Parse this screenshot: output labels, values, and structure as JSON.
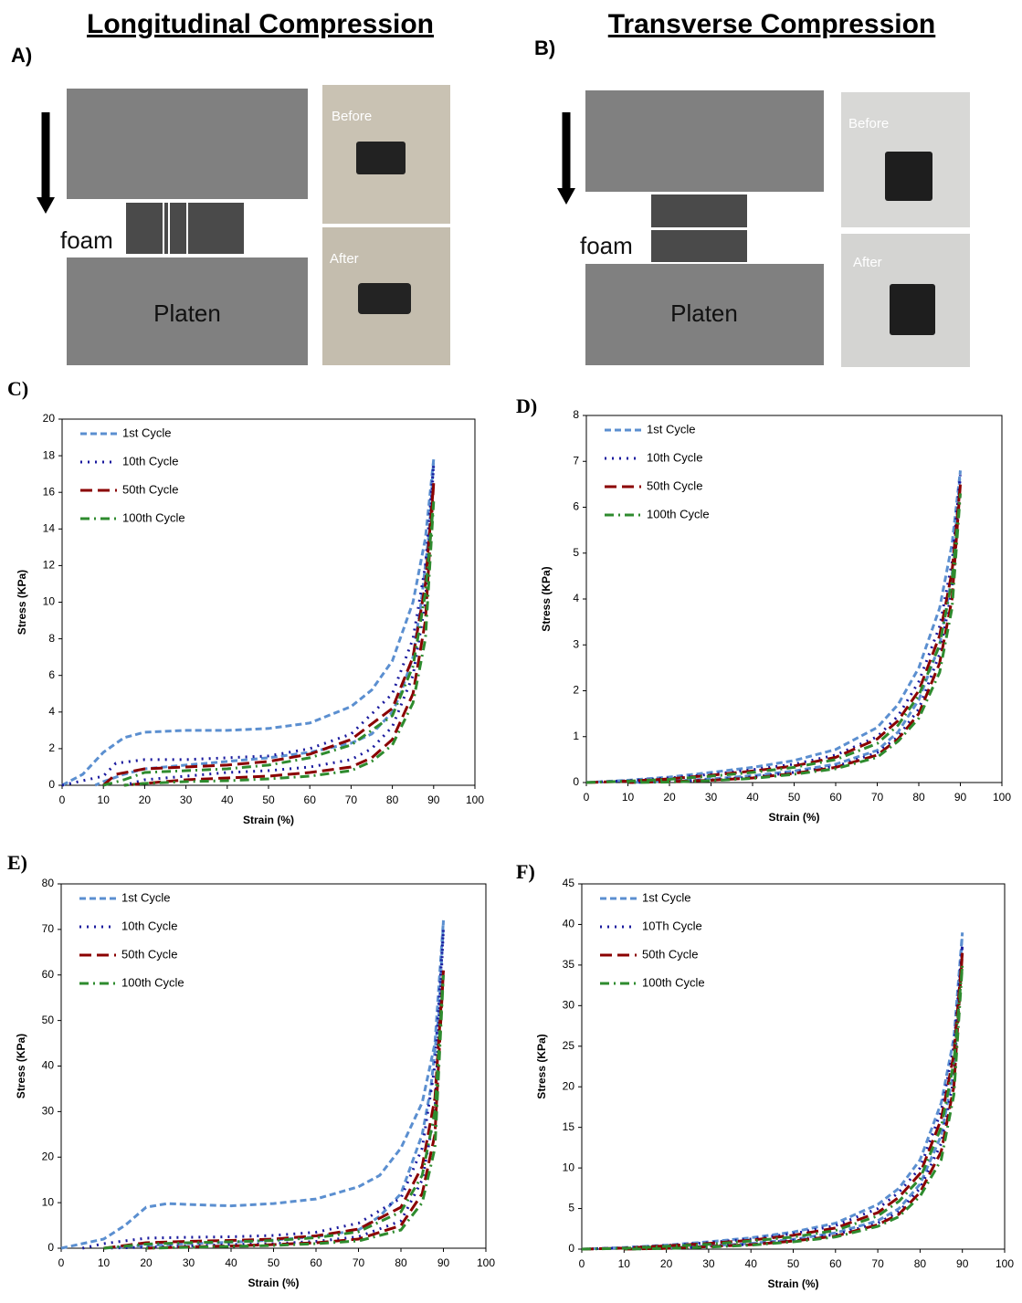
{
  "figure": {
    "panel_a": {
      "title": "Longitudinal Compression",
      "label": "A)",
      "foam": "foam",
      "platen": "Platen",
      "before": "Before",
      "after": "After"
    },
    "panel_b": {
      "title": "Transverse Compression",
      "label": "B)",
      "foam": "foam",
      "platen": "Platen",
      "before": "Before",
      "after": "After"
    }
  },
  "chart_data": [
    {
      "type": "line",
      "panel": "C)",
      "x_label": "Strain (%)",
      "y_label": "Stress (KPa)",
      "legend": "upper left",
      "xlim": [
        0,
        100
      ],
      "xticks": [
        0,
        10,
        20,
        30,
        40,
        50,
        60,
        70,
        80,
        90,
        100
      ],
      "ylim": [
        0,
        20
      ],
      "yticks": [
        0,
        2,
        4,
        6,
        8,
        10,
        12,
        14,
        16,
        18,
        20
      ],
      "series": [
        {
          "name": "1st Cycle",
          "color": "#5b8fd0",
          "dash": "dashed",
          "x": [
            0,
            5,
            10,
            15,
            20,
            30,
            40,
            50,
            60,
            70,
            75,
            80,
            85,
            88,
            90,
            89,
            87,
            85,
            82,
            80,
            75,
            70,
            60,
            50,
            40,
            30,
            20,
            15,
            10,
            8
          ],
          "values": [
            0,
            0.6,
            1.8,
            2.6,
            2.9,
            3.0,
            3.0,
            3.1,
            3.4,
            4.3,
            5.2,
            6.8,
            10,
            13.5,
            17.8,
            14,
            10,
            7,
            5,
            4,
            2.8,
            2.3,
            1.8,
            1.5,
            1.3,
            1.1,
            0.9,
            0.6,
            0.2,
            0
          ]
        },
        {
          "name": "10th Cycle",
          "color": "#1a1a9e",
          "dash": "dotted",
          "x": [
            0,
            10,
            13,
            20,
            30,
            40,
            50,
            60,
            70,
            80,
            85,
            88,
            90,
            88,
            85,
            80,
            75,
            70,
            60,
            50,
            40,
            30,
            20,
            15
          ],
          "values": [
            0,
            0.5,
            1.2,
            1.4,
            1.4,
            1.5,
            1.6,
            2.0,
            2.8,
            5,
            8,
            12,
            17.5,
            10,
            6,
            3.2,
            2.0,
            1.4,
            1.0,
            0.8,
            0.7,
            0.5,
            0.3,
            0
          ]
        },
        {
          "name": "50th Cycle",
          "color": "#8b0000",
          "dash": "longdash",
          "x": [
            10,
            13,
            20,
            30,
            40,
            50,
            60,
            70,
            80,
            85,
            88,
            90,
            88,
            85,
            80,
            75,
            70,
            60,
            50,
            40,
            30,
            20,
            15
          ],
          "values": [
            0,
            0.6,
            0.9,
            1.0,
            1.1,
            1.3,
            1.7,
            2.5,
            4.2,
            7,
            11,
            16.5,
            9,
            5,
            2.5,
            1.5,
            1.0,
            0.7,
            0.5,
            0.4,
            0.3,
            0.1,
            0
          ]
        },
        {
          "name": "100th Cycle",
          "color": "#2e8b2e",
          "dash": "dashdot",
          "x": [
            10,
            15,
            20,
            30,
            40,
            50,
            60,
            70,
            80,
            85,
            88,
            90,
            88,
            85,
            80,
            75,
            70,
            60,
            50,
            40,
            30,
            20,
            15
          ],
          "values": [
            0,
            0.3,
            0.7,
            0.8,
            0.9,
            1.1,
            1.5,
            2.2,
            3.8,
            6.5,
            10.5,
            15.5,
            8,
            4.5,
            2.2,
            1.3,
            0.8,
            0.5,
            0.35,
            0.25,
            0.2,
            0.1,
            0
          ]
        }
      ]
    },
    {
      "type": "line",
      "panel": "D)",
      "x_label": "Strain (%)",
      "y_label": "Stress (KPa)",
      "legend": "upper left",
      "xlim": [
        0,
        100
      ],
      "xticks": [
        0,
        10,
        20,
        30,
        40,
        50,
        60,
        70,
        80,
        90,
        100
      ],
      "ylim": [
        0,
        8
      ],
      "yticks": [
        0,
        1,
        2,
        3,
        4,
        5,
        6,
        7,
        8
      ],
      "series": [
        {
          "name": "1st Cycle",
          "color": "#5b8fd0",
          "dash": "dashed",
          "x": [
            0,
            10,
            20,
            30,
            40,
            50,
            60,
            70,
            75,
            80,
            85,
            88,
            90,
            88,
            85,
            80,
            75,
            70,
            60,
            50,
            40,
            30,
            20,
            10
          ],
          "values": [
            0,
            0.05,
            0.12,
            0.22,
            0.33,
            0.48,
            0.72,
            1.2,
            1.7,
            2.5,
            3.8,
            5.2,
            6.8,
            4.5,
            3,
            1.8,
            1.1,
            0.7,
            0.4,
            0.25,
            0.15,
            0.08,
            0.03,
            0
          ]
        },
        {
          "name": "10th Cycle",
          "color": "#1a1a9e",
          "dash": "dotted",
          "x": [
            0,
            10,
            20,
            30,
            40,
            50,
            60,
            70,
            75,
            80,
            85,
            88,
            90,
            88,
            85,
            80,
            75,
            70,
            60,
            50,
            40,
            30,
            20,
            10
          ],
          "values": [
            0,
            0.04,
            0.1,
            0.18,
            0.28,
            0.4,
            0.6,
            1.0,
            1.45,
            2.2,
            3.4,
            4.8,
            6.7,
            4.2,
            2.8,
            1.6,
            1.0,
            0.65,
            0.35,
            0.22,
            0.12,
            0.06,
            0.02,
            0
          ]
        },
        {
          "name": "50th Cycle",
          "color": "#8b0000",
          "dash": "longdash",
          "x": [
            0,
            10,
            20,
            30,
            40,
            50,
            60,
            70,
            75,
            80,
            85,
            88,
            90,
            88,
            85,
            80,
            75,
            70,
            60,
            50,
            40,
            30,
            20,
            10
          ],
          "values": [
            0,
            0.03,
            0.08,
            0.16,
            0.25,
            0.36,
            0.55,
            0.95,
            1.35,
            2.0,
            3.2,
            4.6,
            6.5,
            4.0,
            2.6,
            1.5,
            0.95,
            0.6,
            0.33,
            0.2,
            0.1,
            0.05,
            0.02,
            0
          ]
        },
        {
          "name": "100th Cycle",
          "color": "#2e8b2e",
          "dash": "dashdot",
          "x": [
            0,
            10,
            20,
            30,
            40,
            50,
            60,
            70,
            75,
            80,
            85,
            88,
            90,
            88,
            85,
            80,
            75,
            70,
            60,
            50,
            40,
            30,
            20,
            10
          ],
          "values": [
            0,
            0.03,
            0.07,
            0.14,
            0.22,
            0.33,
            0.5,
            0.85,
            1.25,
            1.9,
            3.0,
            4.4,
            6.3,
            3.8,
            2.4,
            1.4,
            0.9,
            0.55,
            0.3,
            0.18,
            0.09,
            0.04,
            0.01,
            0
          ]
        }
      ]
    },
    {
      "type": "line",
      "panel": "E)",
      "x_label": "Strain (%)",
      "y_label": "Stress (KPa)",
      "legend": "upper left",
      "xlim": [
        0,
        100
      ],
      "xticks": [
        0,
        10,
        20,
        30,
        40,
        50,
        60,
        70,
        80,
        90,
        100
      ],
      "ylim": [
        0,
        80
      ],
      "yticks": [
        0,
        10,
        20,
        30,
        40,
        50,
        60,
        70,
        80
      ],
      "series": [
        {
          "name": "1st Cycle",
          "color": "#5b8fd0",
          "dash": "dashed",
          "x": [
            0,
            10,
            15,
            20,
            25,
            30,
            40,
            50,
            60,
            70,
            75,
            80,
            85,
            88,
            90,
            89,
            87,
            85,
            80,
            75,
            70,
            60,
            50,
            40,
            30,
            20,
            10
          ],
          "values": [
            0,
            2,
            5,
            9,
            9.8,
            9.6,
            9.3,
            9.8,
            10.8,
            13.5,
            16,
            22,
            32,
            45,
            72,
            52,
            35,
            25,
            12,
            7,
            4,
            2.5,
            1.8,
            1.3,
            1,
            0.6,
            0
          ]
        },
        {
          "name": "10th Cycle",
          "color": "#1a1a9e",
          "dash": "dotted",
          "x": [
            5,
            10,
            20,
            30,
            40,
            50,
            60,
            70,
            80,
            85,
            88,
            90,
            88,
            85,
            80,
            70,
            60,
            50,
            40,
            30,
            20,
            10
          ],
          "values": [
            0,
            1,
            2.2,
            2.4,
            2.5,
            2.8,
            3.5,
            5.5,
            11,
            22,
            40,
            70,
            30,
            15,
            6,
            2.5,
            1.5,
            1,
            0.8,
            0.5,
            0.2,
            0
          ]
        },
        {
          "name": "50th Cycle",
          "color": "#8b0000",
          "dash": "longdash",
          "x": [
            10,
            20,
            30,
            40,
            50,
            60,
            70,
            80,
            85,
            88,
            90,
            88,
            85,
            80,
            70,
            60,
            50,
            40,
            30,
            20
          ],
          "values": [
            0,
            1.2,
            1.5,
            1.7,
            2.0,
            2.7,
            4.2,
            9,
            18,
            33,
            61,
            25,
            12,
            5,
            2,
            1.2,
            0.8,
            0.5,
            0.3,
            0
          ]
        },
        {
          "name": "100th Cycle",
          "color": "#2e8b2e",
          "dash": "dashdot",
          "x": [
            10,
            20,
            30,
            40,
            50,
            60,
            70,
            80,
            85,
            88,
            90,
            88,
            85,
            80,
            70,
            60,
            50,
            40,
            30,
            20
          ],
          "values": [
            0,
            0.9,
            1.2,
            1.4,
            1.7,
            2.3,
            3.6,
            8,
            16,
            30,
            60,
            22,
            10,
            4,
            1.6,
            1.0,
            0.6,
            0.4,
            0.2,
            0
          ]
        }
      ]
    },
    {
      "type": "line",
      "panel": "F)",
      "x_label": "Strain (%)",
      "y_label": "Stress (KPa)",
      "legend": "upper left",
      "xlim": [
        0,
        100
      ],
      "xticks": [
        0,
        10,
        20,
        30,
        40,
        50,
        60,
        70,
        80,
        90,
        100
      ],
      "ylim": [
        0,
        45
      ],
      "yticks": [
        0,
        5,
        10,
        15,
        20,
        25,
        30,
        35,
        40,
        45
      ],
      "series": [
        {
          "name": "1st Cycle",
          "color": "#5b8fd0",
          "dash": "dashed",
          "x": [
            0,
            10,
            20,
            30,
            40,
            50,
            60,
            70,
            75,
            80,
            85,
            88,
            90,
            88,
            85,
            80,
            75,
            70,
            60,
            50,
            40,
            30,
            20,
            10
          ],
          "values": [
            0,
            0.2,
            0.5,
            0.9,
            1.4,
            2.1,
            3.2,
            5.5,
            7.5,
            11,
            18,
            26,
            39,
            22,
            14,
            8,
            5,
            3.5,
            2,
            1.2,
            0.7,
            0.4,
            0.15,
            0
          ]
        },
        {
          "name": "10Th Cycle",
          "color": "#1a1a9e",
          "dash": "dotted",
          "x": [
            0,
            10,
            20,
            30,
            40,
            50,
            60,
            70,
            75,
            80,
            85,
            88,
            90,
            88,
            85,
            80,
            75,
            70,
            60,
            50,
            40,
            30,
            20,
            10
          ],
          "values": [
            0,
            0.15,
            0.45,
            0.8,
            1.25,
            1.9,
            2.9,
            5,
            7,
            10,
            17,
            25,
            37.5,
            21,
            13,
            7.5,
            4.6,
            3.2,
            1.8,
            1.1,
            0.6,
            0.35,
            0.1,
            0
          ]
        },
        {
          "name": "50th Cycle",
          "color": "#8b0000",
          "dash": "longdash",
          "x": [
            0,
            10,
            20,
            30,
            40,
            50,
            60,
            70,
            75,
            80,
            85,
            88,
            90,
            88,
            85,
            80,
            75,
            70,
            60,
            50,
            40,
            30,
            20,
            10
          ],
          "values": [
            0,
            0.12,
            0.4,
            0.7,
            1.1,
            1.7,
            2.6,
            4.5,
            6.4,
            9.3,
            16,
            24,
            36.5,
            20,
            12,
            7,
            4.3,
            3,
            1.6,
            1.0,
            0.55,
            0.3,
            0.1,
            0
          ]
        },
        {
          "name": "100th Cycle",
          "color": "#2e8b2e",
          "dash": "dashdot",
          "x": [
            0,
            10,
            20,
            30,
            40,
            50,
            60,
            70,
            75,
            80,
            85,
            88,
            90,
            88,
            85,
            80,
            75,
            70,
            60,
            50,
            40,
            30,
            20,
            10
          ],
          "values": [
            0,
            0.1,
            0.35,
            0.6,
            1.0,
            1.5,
            2.3,
            4.1,
            5.9,
            8.7,
            15,
            23,
            35,
            19,
            11,
            6.5,
            4,
            2.8,
            1.5,
            0.9,
            0.5,
            0.25,
            0.08,
            0
          ]
        }
      ]
    }
  ]
}
